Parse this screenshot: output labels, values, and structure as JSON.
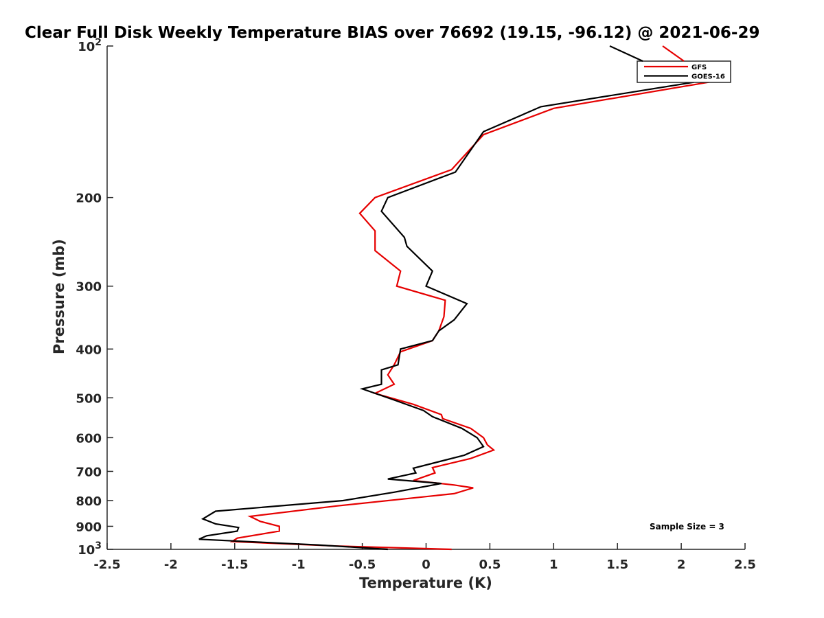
{
  "chart_data": {
    "type": "line",
    "title": "Clear Full Disk Weekly Temperature BIAS over 76692 (19.15, -96.12) @ 2021-06-29",
    "xlabel": "Temperature (K)",
    "ylabel": "Pressure (mb)",
    "xlim": [
      -2.5,
      2.5
    ],
    "ylim": [
      100,
      1000
    ],
    "y_scale": "log",
    "y_reversed": true,
    "grid": false,
    "legend_position": "top-right",
    "x_ticks": [
      "-2.5",
      "-2",
      "-1.5",
      "-1",
      "-0.5",
      "0",
      "0.5",
      "1",
      "1.5",
      "2",
      "2.5"
    ],
    "y_ticks": [
      {
        "value": 100,
        "base": "10",
        "exp": "2"
      },
      {
        "value": 200,
        "label": "200"
      },
      {
        "value": 300,
        "label": "300"
      },
      {
        "value": 400,
        "label": "400"
      },
      {
        "value": 500,
        "label": "500"
      },
      {
        "value": 600,
        "label": "600"
      },
      {
        "value": 700,
        "label": "700"
      },
      {
        "value": 800,
        "label": "800"
      },
      {
        "value": 900,
        "label": "900"
      },
      {
        "value": 1000,
        "base": "10",
        "exp": "3"
      }
    ],
    "series": [
      {
        "name": "GFS",
        "color": "#e60000",
        "points": [
          [
            2.3,
            117
          ],
          [
            1.0,
            133
          ],
          [
            0.45,
            150
          ],
          [
            0.2,
            176
          ],
          [
            -0.4,
            200
          ],
          [
            -0.52,
            215
          ],
          [
            -0.4,
            233
          ],
          [
            -0.4,
            255
          ],
          [
            -0.2,
            280
          ],
          [
            -0.23,
            300
          ],
          [
            0.15,
            320
          ],
          [
            0.14,
            345
          ],
          [
            0.1,
            368
          ],
          [
            0.05,
            385
          ],
          [
            -0.2,
            405
          ],
          [
            -0.25,
            430
          ],
          [
            -0.3,
            450
          ],
          [
            -0.25,
            470
          ],
          [
            -0.4,
            490
          ],
          [
            -0.1,
            515
          ],
          [
            0.12,
            540
          ],
          [
            0.13,
            550
          ],
          [
            0.35,
            575
          ],
          [
            0.45,
            600
          ],
          [
            0.48,
            620
          ],
          [
            0.53,
            635
          ],
          [
            0.35,
            660
          ],
          [
            0.05,
            688
          ],
          [
            0.07,
            705
          ],
          [
            -0.1,
            730
          ],
          [
            0.22,
            745
          ],
          [
            0.37,
            755
          ],
          [
            0.22,
            775
          ],
          [
            -0.7,
            820
          ],
          [
            -1.38,
            860
          ],
          [
            -1.3,
            880
          ],
          [
            -1.15,
            900
          ],
          [
            -1.15,
            920
          ],
          [
            -1.48,
            950
          ],
          [
            -1.52,
            965
          ],
          [
            -0.7,
            985
          ],
          [
            0.2,
            1000
          ]
        ]
      },
      {
        "name": "GOES-16",
        "color": "#000000",
        "points": [
          [
            2.1,
            118
          ],
          [
            0.9,
            132
          ],
          [
            0.45,
            148
          ],
          [
            0.23,
            178
          ],
          [
            -0.3,
            200
          ],
          [
            -0.35,
            213
          ],
          [
            -0.17,
            240
          ],
          [
            -0.15,
            250
          ],
          [
            0.05,
            280
          ],
          [
            0.0,
            300
          ],
          [
            0.32,
            325
          ],
          [
            0.22,
            350
          ],
          [
            0.1,
            368
          ],
          [
            0.05,
            385
          ],
          [
            -0.2,
            400
          ],
          [
            -0.22,
            430
          ],
          [
            -0.35,
            440
          ],
          [
            -0.35,
            470
          ],
          [
            -0.5,
            480
          ],
          [
            -0.25,
            505
          ],
          [
            -0.02,
            530
          ],
          [
            0.05,
            545
          ],
          [
            0.28,
            575
          ],
          [
            0.4,
            600
          ],
          [
            0.45,
            625
          ],
          [
            0.3,
            650
          ],
          [
            -0.1,
            690
          ],
          [
            -0.08,
            705
          ],
          [
            -0.3,
            725
          ],
          [
            0.12,
            740
          ],
          [
            -0.25,
            770
          ],
          [
            -0.65,
            800
          ],
          [
            -1.65,
            840
          ],
          [
            -1.75,
            870
          ],
          [
            -1.65,
            890
          ],
          [
            -1.47,
            905
          ],
          [
            -1.48,
            920
          ],
          [
            -1.72,
            940
          ],
          [
            -1.78,
            955
          ],
          [
            -0.85,
            980
          ],
          [
            -0.3,
            1000
          ]
        ]
      }
    ],
    "annotations": [
      "Sample Size = 3"
    ]
  }
}
